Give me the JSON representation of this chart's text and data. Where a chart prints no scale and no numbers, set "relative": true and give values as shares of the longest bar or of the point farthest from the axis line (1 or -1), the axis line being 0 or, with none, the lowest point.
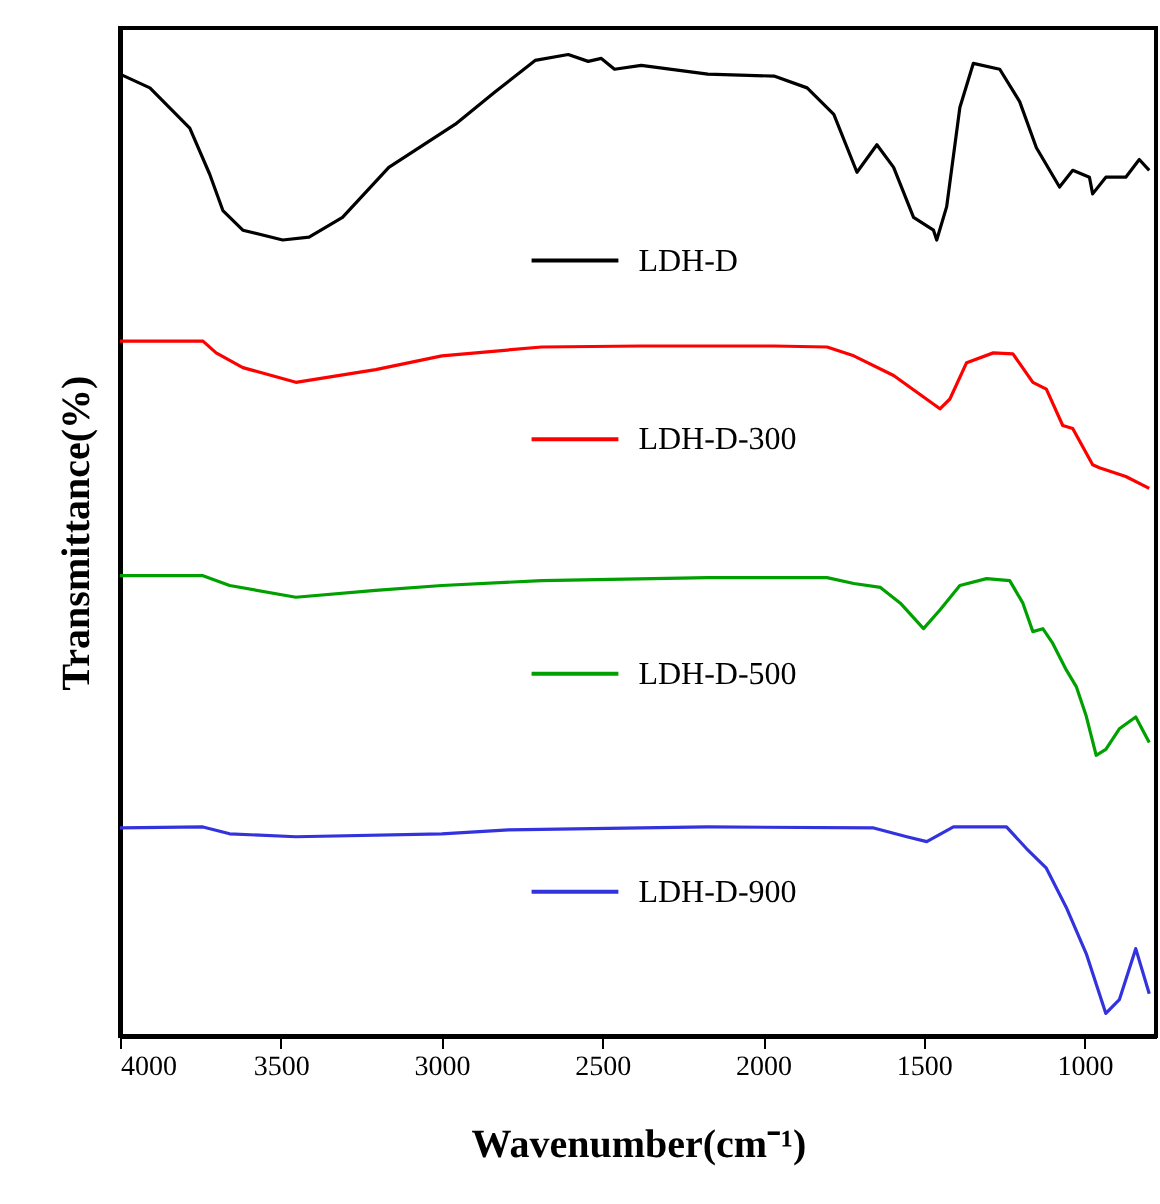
{
  "chart_data": {
    "type": "line",
    "relative": true,
    "xlabel": "Wavenumber(cm⁻¹)",
    "ylabel": "Transmittance(%)",
    "xlim": [
      4000,
      778
    ],
    "xticks": [
      4000,
      3500,
      3000,
      2500,
      2000,
      1500,
      1000
    ],
    "tick_labels": "x",
    "grid": false,
    "legend": "center",
    "marker": "none",
    "line_style": "solid",
    "series": [
      {
        "name": "LDH-D",
        "color": "#000000",
        "x": [
          4000,
          3907,
          3783,
          3721,
          3680,
          3618,
          3494,
          3412,
          3308,
          3164,
          2957,
          2833,
          2709,
          2606,
          2544,
          2503,
          2462,
          2379,
          2172,
          1966,
          1863,
          1780,
          1708,
          1646,
          1594,
          1532,
          1470,
          1460,
          1429,
          1388,
          1346,
          1264,
          1202,
          1150,
          1078,
          1037,
          985,
          975,
          934,
          872,
          830,
          799
        ],
        "values": [
          0.98,
          0.966,
          0.925,
          0.878,
          0.841,
          0.821,
          0.811,
          0.814,
          0.834,
          0.885,
          0.929,
          0.962,
          0.994,
          1.0,
          0.993,
          0.996,
          0.985,
          0.989,
          0.98,
          0.978,
          0.966,
          0.939,
          0.88,
          0.908,
          0.885,
          0.834,
          0.821,
          0.811,
          0.845,
          0.946,
          0.991,
          0.985,
          0.952,
          0.905,
          0.865,
          0.882,
          0.875,
          0.858,
          0.875,
          0.875,
          0.893,
          0.882
        ]
      },
      {
        "name": "LDH-D-300",
        "color": "#ff0000",
        "x": [
          4000,
          3742,
          3701,
          3618,
          3453,
          3205,
          2999,
          2689,
          2379,
          1966,
          1801,
          1718,
          1594,
          1450,
          1419,
          1367,
          1284,
          1223,
          1161,
          1119,
          1068,
          1037,
          975,
          954,
          872,
          799
        ],
        "values": [
          0.708,
          0.708,
          0.696,
          0.681,
          0.666,
          0.679,
          0.693,
          0.702,
          0.703,
          0.703,
          0.702,
          0.693,
          0.673,
          0.639,
          0.649,
          0.686,
          0.696,
          0.695,
          0.666,
          0.659,
          0.622,
          0.619,
          0.582,
          0.579,
          0.57,
          0.558
        ]
      },
      {
        "name": "LDH-D-500",
        "color": "#00a000",
        "x": [
          4000,
          3742,
          3659,
          3453,
          3205,
          2999,
          2689,
          2172,
          1801,
          1718,
          1635,
          1573,
          1501,
          1450,
          1388,
          1305,
          1233,
          1192,
          1161,
          1130,
          1099,
          1057,
          1026,
          995,
          964,
          934,
          892,
          841,
          799
        ],
        "values": [
          0.469,
          0.469,
          0.459,
          0.447,
          0.454,
          0.459,
          0.464,
          0.467,
          0.467,
          0.461,
          0.457,
          0.441,
          0.415,
          0.434,
          0.459,
          0.466,
          0.464,
          0.441,
          0.412,
          0.415,
          0.4,
          0.373,
          0.356,
          0.326,
          0.286,
          0.292,
          0.313,
          0.325,
          0.299
        ]
      },
      {
        "name": "LDH-D-900",
        "color": "#3333dd",
        "x": [
          4000,
          3742,
          3659,
          3453,
          2999,
          2792,
          2172,
          1656,
          1553,
          1491,
          1408,
          1243,
          1181,
          1119,
          1057,
          995,
          934,
          892,
          841,
          799
        ],
        "values": [
          0.212,
          0.213,
          0.206,
          0.203,
          0.206,
          0.21,
          0.213,
          0.212,
          0.203,
          0.198,
          0.213,
          0.213,
          0.191,
          0.171,
          0.131,
          0.084,
          0.023,
          0.037,
          0.089,
          0.043
        ]
      }
    ]
  }
}
